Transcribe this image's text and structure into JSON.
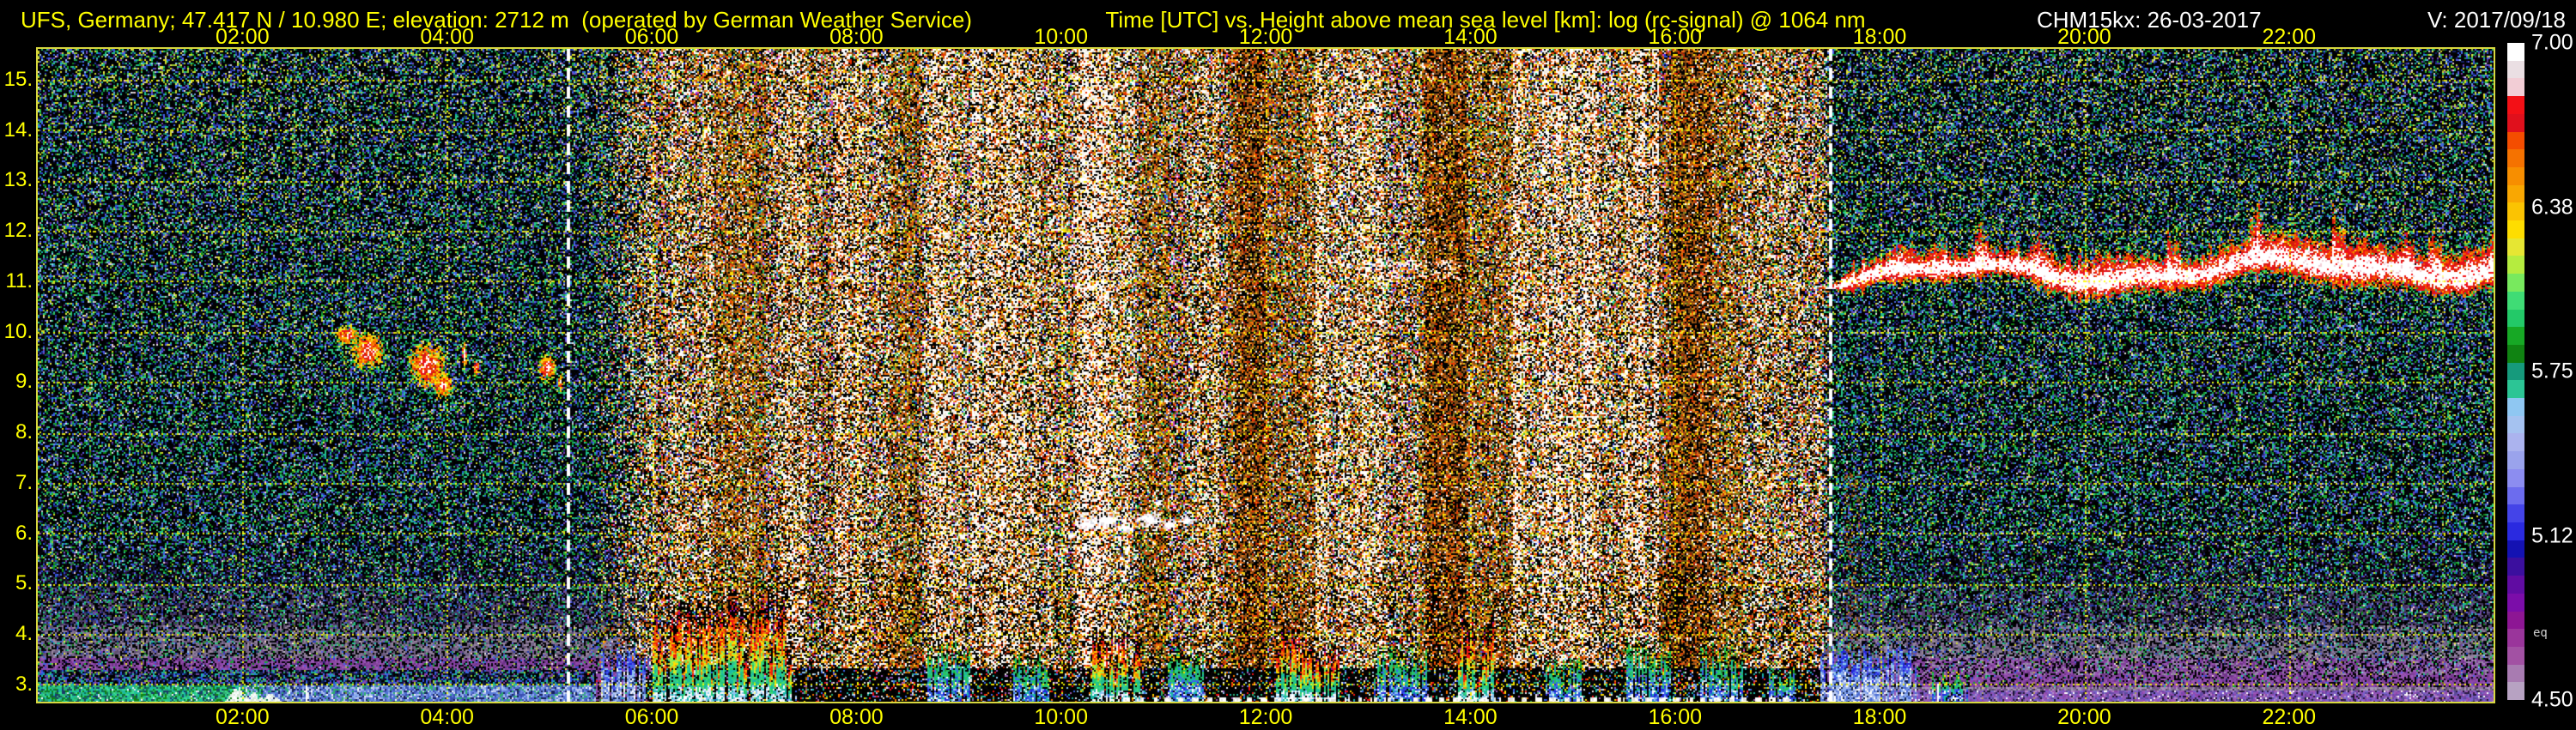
{
  "chart_data": {
    "type": "heatmap",
    "title_left": "UFS, Germany; 47.417 N / 10.980 E; elevation: 2712 m  (operated by German Weather Service)",
    "title_center": "Time [UTC] vs. Height above mean sea level [km]: log (rc-signal) @ 1064 nm",
    "title_instrument": "CHM15kx: 26-03-2017",
    "title_version": "V: 2017/09/18",
    "x_axis": {
      "unit": "UTC",
      "range_hours": [
        0,
        24
      ],
      "tick_hours": [
        2,
        4,
        6,
        8,
        10,
        12,
        14,
        16,
        18,
        20,
        22
      ],
      "tick_labels": [
        "02:00",
        "04:00",
        "06:00",
        "08:00",
        "10:00",
        "12:00",
        "14:00",
        "16:00",
        "18:00",
        "20:00",
        "22:00"
      ]
    },
    "y_axis": {
      "unit": "km above mean sea level",
      "range_km": [
        2.72,
        15.61
      ],
      "ticks_km": [
        15,
        14,
        13,
        12,
        11,
        10,
        9,
        8,
        7,
        6,
        5,
        4,
        3
      ],
      "tick_labels": [
        "15.",
        "14.",
        "13.",
        "12.",
        "11.",
        "10.",
        "9.",
        "8.",
        "7.",
        "6.",
        "5.",
        "4.",
        "3."
      ]
    },
    "colorbar": {
      "tick_labels": [
        "7.00",
        "6.38",
        "5.75",
        "5.12",
        "4.50"
      ],
      "value_range": [
        4.5,
        7.0
      ],
      "side_note": "eq",
      "palette_top_to_bottom": [
        "#ffffff",
        "#eadfe3",
        "#f2cdd5",
        "#f31016",
        "#e0101c",
        "#f44d00",
        "#f57200",
        "#f78e00",
        "#f9a702",
        "#fbc302",
        "#fedd00",
        "#e6e633",
        "#b5ec3f",
        "#78e95e",
        "#3fdc75",
        "#23c968",
        "#17a825",
        "#108312",
        "#169a7c",
        "#2cc595",
        "#8fc7f2",
        "#a5c2f0",
        "#abb3ee",
        "#9aa3ec",
        "#8c8df0",
        "#6c6cee",
        "#4444e8",
        "#2a2ae0",
        "#1412b2",
        "#3b0f9e",
        "#600ca2",
        "#7b0da9",
        "#8d1694",
        "#9a359b",
        "#a251a3",
        "#a87bb1",
        "#b7a2c2"
      ]
    },
    "grid_color": "#ffff00",
    "frame_color": "#d8d840",
    "sun_lines_hours": [
      5.19,
      17.52
    ],
    "day_period_hours": [
      5.3,
      17.52
    ],
    "day_bands": {
      "bright": [
        [
          8.65,
          9.2
        ],
        [
          10.12,
          10.71
        ],
        [
          12.47,
          13.14
        ],
        [
          14.4,
          15.24
        ]
      ],
      "brown": [
        [
          6.6,
          7.1
        ],
        [
          8.32,
          8.61
        ],
        [
          10.75,
          11.05
        ],
        [
          11.63,
          12.47
        ],
        [
          13.48,
          14.4
        ],
        [
          15.83,
          16.66
        ]
      ],
      "dark": [
        [
          11.7,
          12.0
        ],
        [
          13.55,
          13.95
        ],
        [
          15.95,
          16.35
        ]
      ]
    },
    "features": {
      "warm_blobs": [
        {
          "t": 3.02,
          "km": 9.95,
          "rt": 0.14,
          "rk": 0.22
        },
        {
          "t": 3.22,
          "km": 9.62,
          "rt": 0.2,
          "rk": 0.4
        },
        {
          "t": 3.8,
          "km": 9.35,
          "rt": 0.22,
          "rk": 0.5
        },
        {
          "t": 3.95,
          "km": 8.95,
          "rt": 0.12,
          "rk": 0.28
        },
        {
          "t": 4.16,
          "km": 9.55,
          "rt": 0.03,
          "rk": 0.3
        },
        {
          "t": 4.28,
          "km": 9.3,
          "rt": 0.03,
          "rk": 0.2
        },
        {
          "t": 4.97,
          "km": 9.3,
          "rt": 0.1,
          "rk": 0.3
        },
        {
          "t": 5.1,
          "km": 9.0,
          "rt": 0.03,
          "rk": 0.2
        }
      ],
      "white_blobs": [
        {
          "t": 10.25,
          "km": 6.2,
          "rt": 0.11,
          "rk": 0.13
        },
        {
          "t": 10.45,
          "km": 6.28,
          "rt": 0.13,
          "rk": 0.15
        },
        {
          "t": 10.63,
          "km": 6.12,
          "rt": 0.1,
          "rk": 0.11
        },
        {
          "t": 10.85,
          "km": 6.3,
          "rt": 0.15,
          "rk": 0.17
        },
        {
          "t": 11.05,
          "km": 6.18,
          "rt": 0.1,
          "rk": 0.12
        },
        {
          "t": 11.22,
          "km": 6.27,
          "rt": 0.08,
          "rk": 0.1
        },
        {
          "t": 10.95,
          "km": 6.62,
          "rt": 0.05,
          "rk": 0.07
        },
        {
          "t": 10.1,
          "km": 5.97,
          "rt": 0.05,
          "rk": 0.08
        }
      ],
      "patches": [
        {
          "t": [
            6.34,
            7.18
          ],
          "km": [
            11.1,
            11.7
          ],
          "density": 0.08,
          "colors": [
            "#e06a30",
            "#f08a40",
            "#c05020",
            "#8a5a30"
          ]
        },
        {
          "t": [
            7.44,
            7.95
          ],
          "km": [
            11.15,
            11.5
          ],
          "density": 0.045,
          "colors": [
            "#e06a30",
            "#f08a40",
            "#c05020"
          ]
        },
        {
          "t": [
            12.89,
            13.9
          ],
          "km": [
            11.05,
            11.42
          ],
          "density": 0.3,
          "colors": [
            "#ffffff",
            "#ffffff",
            "#ffd9c0",
            "#f07030"
          ]
        },
        {
          "t": [
            14.32,
            17.17
          ],
          "km": [
            10.8,
            11.32
          ],
          "density": 0.1,
          "colors": [
            "#f07030",
            "#e05020",
            "#ffffff",
            "#f31016",
            "#c89a60"
          ]
        },
        {
          "t": [
            17.54,
            17.72
          ],
          "km": [
            3.3,
            12.5
          ],
          "density": 0.05,
          "colors": [
            "#2fbf5f",
            "#19b8a6",
            "#3fdc75"
          ]
        },
        {
          "t": [
            17.66,
            17.8
          ],
          "km": [
            2.9,
            7.2
          ],
          "density": 0.2,
          "colors": [
            "#7a4a20",
            "#9a5a24",
            "#c87830",
            "#5a3a18"
          ]
        }
      ],
      "spike_groups": [
        {
          "t": [
            5.5,
            5.92
          ],
          "km_max": 3.95,
          "style": "blue"
        },
        {
          "t": [
            6.0,
            6.7
          ],
          "km_max": 4.65,
          "style": "vivid"
        },
        {
          "t": [
            6.75,
            7.35
          ],
          "km_max": 4.75,
          "style": "vivid"
        },
        {
          "t": [
            8.69,
            9.1
          ],
          "km_max": 3.9,
          "style": "cool"
        },
        {
          "t": [
            9.53,
            9.87
          ],
          "km_max": 3.6,
          "style": "cool"
        },
        {
          "t": [
            10.29,
            10.75
          ],
          "km_max": 4.05,
          "style": "vivid"
        },
        {
          "t": [
            11.04,
            11.38
          ],
          "km_max": 3.75,
          "style": "cool"
        },
        {
          "t": [
            12.09,
            12.72
          ],
          "km_max": 4.15,
          "style": "vivid"
        },
        {
          "t": [
            13.06,
            13.56
          ],
          "km_max": 3.85,
          "style": "cool"
        },
        {
          "t": [
            13.86,
            14.22
          ],
          "km_max": 4.35,
          "style": "vivid"
        },
        {
          "t": [
            14.74,
            15.07
          ],
          "km_max": 3.55,
          "style": "cool"
        },
        {
          "t": [
            15.53,
            15.95
          ],
          "km_max": 3.95,
          "style": "cool"
        },
        {
          "t": [
            16.23,
            16.65
          ],
          "km_max": 3.85,
          "style": "cool"
        },
        {
          "t": [
            16.92,
            17.17
          ],
          "km_max": 3.45,
          "style": "cool"
        },
        {
          "t": [
            17.42,
            18.34
          ],
          "km_max": 3.8,
          "style": "blue"
        },
        {
          "t": [
            18.51,
            18.85
          ],
          "km_max": 3.3,
          "style": "cool"
        }
      ],
      "cirrus_band": {
        "t_range": [
          17.45,
          24
        ],
        "km_center": 11.12,
        "wave_amp": [
          0.18,
          0.08
        ],
        "thickness": [
          0.22,
          0.18
        ],
        "growth_per_hour": 0.05
      },
      "mountains": {
        "t": [
          1.82,
          2.38
        ],
        "peaks": [
          [
            1.95,
            0.13,
            0.3
          ],
          [
            2.1,
            0.1,
            0.2
          ],
          [
            2.27,
            0.11,
            0.17
          ]
        ]
      },
      "white_columns": [
        {
          "t": 2.62,
          "km_top": 2.98
        },
        {
          "t": 17.95,
          "km_top": 3.08
        },
        {
          "t": 18.56,
          "km_top": 3.02
        }
      ],
      "bottom_dash": {
        "t": [
          10.6,
          17.15
        ]
      }
    }
  }
}
